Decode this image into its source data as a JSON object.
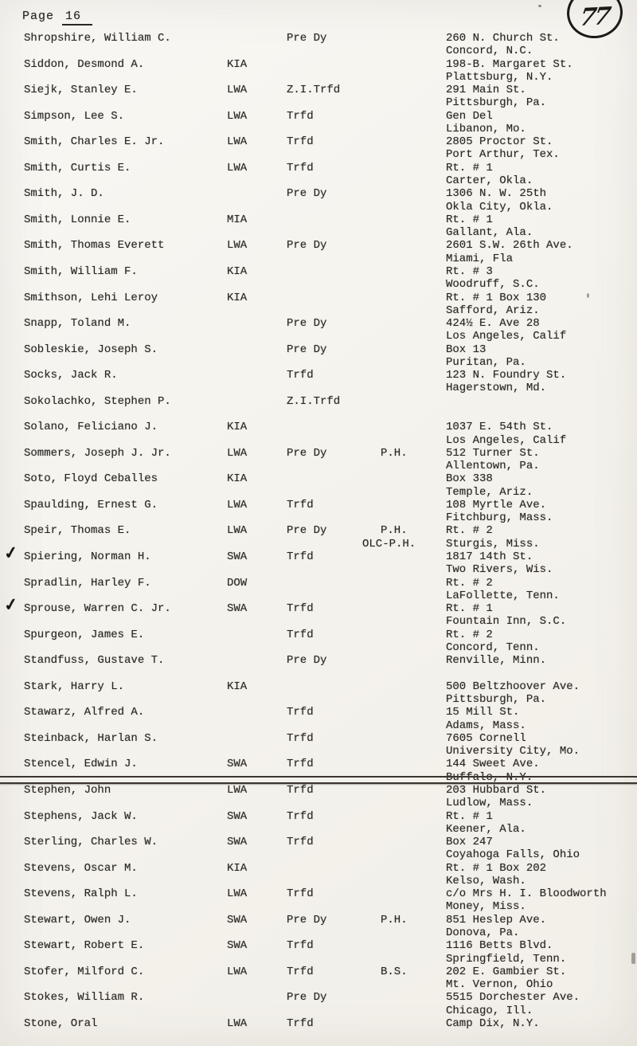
{
  "header": {
    "page_label": "Page",
    "page_number": "16",
    "stamp_number": "77"
  },
  "icons": {
    "checkmark": "✓"
  },
  "colors": {
    "paper": "#f6f4ee",
    "ink": "#2a2623"
  },
  "roster": {
    "entries": [
      {
        "name": "Shropshire, William C.",
        "status": "",
        "disposition": "Pre Dy",
        "awards": [],
        "address": [
          "260 N. Church St.",
          "Concord, N.C."
        ]
      },
      {
        "name": "Siddon, Desmond A.",
        "status": "KIA",
        "disposition": "",
        "awards": [],
        "address": [
          "198-B. Margaret St.",
          "Plattsburg, N.Y."
        ]
      },
      {
        "name": "Siejk, Stanley E.",
        "status": "LWA",
        "disposition": "Z.I.Trfd",
        "awards": [],
        "address": [
          "291 Main St.",
          "Pittsburgh, Pa."
        ]
      },
      {
        "name": "Simpson, Lee S.",
        "status": "LWA",
        "disposition": "Trfd",
        "awards": [],
        "address": [
          "Gen Del",
          "Libanon, Mo."
        ]
      },
      {
        "name": "Smith, Charles E. Jr.",
        "status": "LWA",
        "disposition": "Trfd",
        "awards": [],
        "address": [
          "2805 Proctor St.",
          "Port Arthur, Tex."
        ]
      },
      {
        "name": "Smith, Curtis E.",
        "status": "LWA",
        "disposition": "Trfd",
        "awards": [],
        "address": [
          "Rt. # 1",
          "Carter, Okla."
        ]
      },
      {
        "name": "Smith, J. D.",
        "status": "",
        "disposition": "Pre Dy",
        "awards": [],
        "address": [
          "1306 N. W. 25th",
          "Okla City, Okla."
        ]
      },
      {
        "name": "Smith, Lonnie E.",
        "status": "MIA",
        "disposition": "",
        "awards": [],
        "address": [
          "Rt. # 1",
          "Gallant, Ala."
        ]
      },
      {
        "name": "Smith, Thomas Everett",
        "status": "LWA",
        "disposition": "Pre Dy",
        "awards": [],
        "address": [
          "2601 S.W. 26th Ave.",
          "Miami, Fla"
        ]
      },
      {
        "name": "Smith, William F.",
        "status": "KIA",
        "disposition": "",
        "awards": [],
        "address": [
          "Rt. # 3",
          "Woodruff, S.C."
        ]
      },
      {
        "name": "Smithson, Lehi Leroy",
        "status": "KIA",
        "disposition": "",
        "awards": [],
        "address": [
          "Rt. # 1 Box 130",
          "Safford, Ariz."
        ]
      },
      {
        "name": "Snapp, Toland M.",
        "status": "",
        "disposition": "Pre Dy",
        "awards": [],
        "address": [
          "424½ E. Ave 28",
          "Los Angeles, Calif"
        ]
      },
      {
        "name": "Sobleskie, Joseph S.",
        "status": "",
        "disposition": "Pre Dy",
        "awards": [],
        "address": [
          "Box 13",
          "Puritan, Pa."
        ]
      },
      {
        "name": "Socks, Jack R.",
        "status": "",
        "disposition": "Trfd",
        "awards": [],
        "address": [
          "123 N. Foundry St.",
          "Hagerstown, Md."
        ]
      },
      {
        "name": "Sokolachko, Stephen P.",
        "status": "",
        "disposition": "Z.I.Trfd",
        "awards": [],
        "address": []
      },
      {
        "name": "Solano, Feliciano J.",
        "status": "KIA",
        "disposition": "",
        "awards": [],
        "address": [
          "1037 E. 54th St.",
          "Los Angeles, Calif"
        ]
      },
      {
        "name": "Sommers, Joseph J. Jr.",
        "status": "LWA",
        "disposition": "Pre Dy",
        "awards": [
          "P.H."
        ],
        "address": [
          "512 Turner St.",
          "Allentown, Pa."
        ]
      },
      {
        "name": "Soto, Floyd Ceballes",
        "status": "KIA",
        "disposition": "",
        "awards": [],
        "address": [
          "Box 338",
          "Temple, Ariz."
        ]
      },
      {
        "name": "Spaulding, Ernest G.",
        "status": "LWA",
        "disposition": "Trfd",
        "awards": [],
        "address": [
          "108 Myrtle Ave.",
          "Fitchburg, Mass."
        ]
      },
      {
        "name": "Speir, Thomas E.",
        "status": "LWA",
        "disposition": "Pre Dy",
        "awards": [
          "P.H.",
          "OLC-P.H."
        ],
        "address": [
          "Rt. # 2",
          "Sturgis, Miss."
        ]
      },
      {
        "check": true,
        "name": "Spiering, Norman H.",
        "status": "SWA",
        "disposition": "Trfd",
        "awards": [],
        "address": [
          "1817 14th St.",
          "Two Rivers, Wis."
        ]
      },
      {
        "name": "Spradlin, Harley F.",
        "status": "DOW",
        "disposition": "",
        "awards": [],
        "address": [
          "Rt. # 2",
          "LaFollette, Tenn."
        ]
      },
      {
        "check": true,
        "name": "Sprouse, Warren C. Jr.",
        "status": "SWA",
        "disposition": "Trfd",
        "awards": [],
        "address": [
          "Rt. # 1",
          "Fountain Inn, S.C."
        ]
      },
      {
        "name": "Spurgeon, James E.",
        "status": "",
        "disposition": "Trfd",
        "awards": [],
        "address": [
          "Rt. # 2",
          "Concord, Tenn."
        ]
      },
      {
        "name": "Standfuss, Gustave T.",
        "status": "",
        "disposition": "Pre Dy",
        "awards": [],
        "address": [
          "Renville, Minn."
        ]
      },
      {
        "name": "Stark, Harry L.",
        "status": "KIA",
        "disposition": "",
        "awards": [],
        "address": [
          "500 Beltzhoover Ave.",
          "Pittsburgh, Pa."
        ]
      },
      {
        "name": "Stawarz, Alfred A.",
        "status": "",
        "disposition": "Trfd",
        "awards": [],
        "address": [
          "15 Mill St.",
          "Adams, Mass."
        ]
      },
      {
        "name": "Steinback, Harlan S.",
        "status": "",
        "disposition": "Trfd",
        "awards": [],
        "address": [
          "7605 Cornell",
          "University City, Mo."
        ]
      },
      {
        "name": "Stencel, Edwin J.",
        "status": "SWA",
        "disposition": "Trfd",
        "awards": [],
        "address": [
          "144 Sweet Ave.",
          "Buffalo, N.Y."
        ],
        "divider_after": true
      },
      {
        "name": "Stephen, John",
        "status": "LWA",
        "disposition": "Trfd",
        "awards": [],
        "address": [
          "203 Hubbard St.",
          "Ludlow, Mass."
        ]
      },
      {
        "name": "Stephens, Jack W.",
        "status": "SWA",
        "disposition": "Trfd",
        "awards": [],
        "address": [
          "Rt. # 1",
          "Keener, Ala."
        ]
      },
      {
        "name": "Sterling, Charles W.",
        "status": "SWA",
        "disposition": "Trfd",
        "awards": [],
        "address": [
          "Box 247",
          "Coyahoga Falls, Ohio"
        ]
      },
      {
        "name": "Stevens, Oscar M.",
        "status": "KIA",
        "disposition": "",
        "awards": [],
        "address": [
          "Rt. # 1 Box 202",
          "Kelso, Wash."
        ]
      },
      {
        "name": "Stevens, Ralph L.",
        "status": "LWA",
        "disposition": "Trfd",
        "awards": [],
        "address": [
          "c/o Mrs H. I. Bloodworth",
          "Money, Miss."
        ]
      },
      {
        "name": "Stewart, Owen J.",
        "status": "SWA",
        "disposition": "Pre Dy",
        "awards": [
          "P.H."
        ],
        "address": [
          "851 Heslep Ave.",
          "Donova, Pa."
        ]
      },
      {
        "name": "Stewart, Robert E.",
        "status": "SWA",
        "disposition": "Trfd",
        "awards": [],
        "address": [
          "1116 Betts Blvd.",
          "Springfield, Tenn."
        ]
      },
      {
        "name": "Stofer, Milford C.",
        "status": "LWA",
        "disposition": "Trfd",
        "awards": [
          "B.S."
        ],
        "address": [
          "202 E. Gambier St.",
          "Mt. Vernon, Ohio"
        ]
      },
      {
        "name": "Stokes, William R.",
        "status": "",
        "disposition": "Pre Dy",
        "awards": [],
        "address": [
          "5515 Dorchester Ave.",
          "Chicago, Ill."
        ]
      },
      {
        "name": "Stone, Oral",
        "status": "LWA",
        "disposition": "Trfd",
        "awards": [],
        "address": [
          "Camp Dix, N.Y."
        ]
      }
    ]
  }
}
